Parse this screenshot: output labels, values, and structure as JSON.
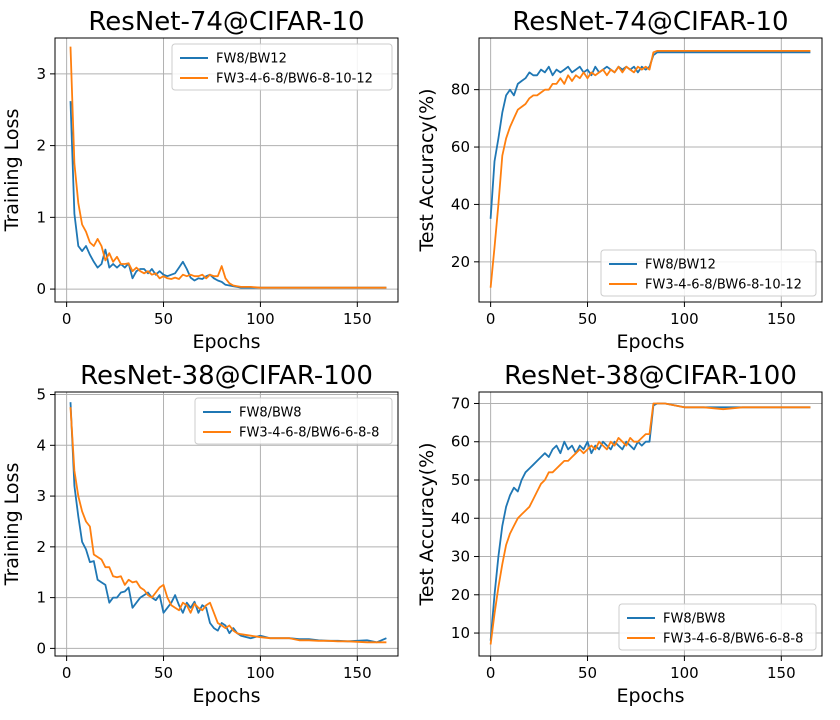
{
  "colors": {
    "series1": "#1f77b4",
    "series2": "#ff7f0e",
    "grid": "#b0b0b0"
  },
  "chart_data": [
    {
      "type": "line",
      "title": "ResNet-74@CIFAR-10",
      "xlabel": "Epochs",
      "ylabel": "Training Loss",
      "xlim": [
        -6,
        171
      ],
      "ylim": [
        -0.18,
        3.5
      ],
      "xticks": [
        0,
        50,
        100,
        150
      ],
      "yticks": [
        0,
        1,
        2,
        3
      ],
      "grid": true,
      "legend_position": "top-right",
      "series": [
        {
          "name": "FW8/BW12",
          "x": [
            2,
            4,
            6,
            8,
            10,
            12,
            14,
            16,
            18,
            20,
            22,
            24,
            26,
            28,
            30,
            32,
            34,
            36,
            38,
            40,
            42,
            44,
            46,
            48,
            50,
            52,
            54,
            56,
            58,
            60,
            62,
            64,
            66,
            68,
            70,
            72,
            74,
            76,
            78,
            80,
            82,
            84,
            86,
            88,
            90,
            95,
            100,
            110,
            120,
            130,
            140,
            150,
            160,
            165
          ],
          "y": [
            2.62,
            1.05,
            0.6,
            0.53,
            0.6,
            0.48,
            0.38,
            0.3,
            0.35,
            0.55,
            0.3,
            0.35,
            0.3,
            0.35,
            0.3,
            0.36,
            0.15,
            0.25,
            0.28,
            0.28,
            0.22,
            0.28,
            0.2,
            0.25,
            0.2,
            0.18,
            0.2,
            0.22,
            0.3,
            0.38,
            0.28,
            0.16,
            0.12,
            0.15,
            0.14,
            0.18,
            0.2,
            0.15,
            0.12,
            0.1,
            0.06,
            0.05,
            0.04,
            0.03,
            0.02,
            0.02,
            0.02,
            0.02,
            0.02,
            0.02,
            0.02,
            0.02,
            0.02,
            0.02
          ]
        },
        {
          "name": "FW3-4-6-8/BW6-8-10-12",
          "x": [
            2,
            4,
            6,
            8,
            10,
            12,
            14,
            16,
            18,
            20,
            22,
            24,
            26,
            28,
            30,
            32,
            34,
            36,
            38,
            40,
            42,
            44,
            46,
            48,
            50,
            52,
            54,
            56,
            58,
            60,
            62,
            64,
            66,
            68,
            70,
            72,
            74,
            76,
            78,
            80,
            82,
            84,
            86,
            88,
            90,
            95,
            100,
            110,
            120,
            130,
            140,
            150,
            160,
            165
          ],
          "y": [
            3.38,
            1.75,
            1.2,
            0.9,
            0.8,
            0.65,
            0.6,
            0.7,
            0.6,
            0.4,
            0.5,
            0.38,
            0.45,
            0.35,
            0.35,
            0.36,
            0.25,
            0.3,
            0.25,
            0.22,
            0.25,
            0.2,
            0.22,
            0.15,
            0.18,
            0.15,
            0.14,
            0.16,
            0.14,
            0.2,
            0.18,
            0.2,
            0.18,
            0.18,
            0.2,
            0.15,
            0.2,
            0.18,
            0.18,
            0.32,
            0.15,
            0.08,
            0.05,
            0.04,
            0.03,
            0.03,
            0.02,
            0.02,
            0.02,
            0.02,
            0.02,
            0.02,
            0.02,
            0.02
          ]
        }
      ]
    },
    {
      "type": "line",
      "title": "ResNet-74@CIFAR-10",
      "xlabel": "Epochs",
      "ylabel": "Test Accuracy(%)",
      "xlim": [
        -6,
        171
      ],
      "ylim": [
        6,
        98
      ],
      "xticks": [
        0,
        50,
        100,
        150
      ],
      "yticks": [
        20,
        40,
        60,
        80
      ],
      "grid": true,
      "legend_position": "bottom-right",
      "series": [
        {
          "name": "FW8/BW12",
          "x": [
            0,
            2,
            4,
            6,
            8,
            10,
            12,
            14,
            16,
            18,
            20,
            22,
            24,
            26,
            28,
            30,
            32,
            34,
            36,
            38,
            40,
            42,
            44,
            46,
            48,
            50,
            52,
            54,
            56,
            58,
            60,
            62,
            64,
            66,
            68,
            70,
            72,
            74,
            76,
            78,
            80,
            82,
            84,
            86,
            88,
            90,
            95,
            100,
            110,
            120,
            130,
            140,
            150,
            160,
            165
          ],
          "y": [
            35,
            55,
            63,
            72,
            78,
            80,
            78,
            82,
            83,
            84,
            86,
            85,
            85,
            87,
            86,
            88,
            85,
            87,
            86,
            87,
            88,
            86,
            87,
            88,
            86,
            87,
            85,
            88,
            86,
            87,
            88,
            87,
            86,
            88,
            87,
            88,
            87,
            88,
            86,
            88,
            87,
            88,
            92,
            93,
            93,
            93,
            93,
            93,
            93,
            93,
            93,
            93,
            93,
            93,
            93
          ]
        },
        {
          "name": "FW3-4-6-8/BW6-8-10-12",
          "x": [
            0,
            2,
            4,
            6,
            8,
            10,
            12,
            14,
            16,
            18,
            20,
            22,
            24,
            26,
            28,
            30,
            32,
            34,
            36,
            38,
            40,
            42,
            44,
            46,
            48,
            50,
            52,
            54,
            56,
            58,
            60,
            62,
            64,
            66,
            68,
            70,
            72,
            74,
            76,
            78,
            80,
            82,
            84,
            86,
            88,
            90,
            95,
            100,
            110,
            120,
            130,
            140,
            150,
            160,
            165
          ],
          "y": [
            11,
            25,
            40,
            57,
            63,
            67,
            70,
            73,
            74,
            75,
            77,
            78,
            78,
            79,
            80,
            80,
            82,
            82,
            84,
            82,
            85,
            83,
            85,
            84,
            86,
            84,
            86,
            85,
            86,
            87,
            85,
            87,
            86,
            88,
            86,
            88,
            87,
            86,
            88,
            87,
            88,
            87,
            93,
            93.5,
            93.5,
            93.5,
            93.5,
            93.5,
            93.5,
            93.5,
            93.5,
            93.5,
            93.5,
            93.5,
            93.5
          ]
        }
      ]
    },
    {
      "type": "line",
      "title": "ResNet-38@CIFAR-100",
      "xlabel": "Epochs",
      "ylabel": "Training Loss",
      "xlim": [
        -6,
        171
      ],
      "ylim": [
        -0.15,
        5.05
      ],
      "xticks": [
        0,
        50,
        100,
        150
      ],
      "yticks": [
        0,
        1,
        2,
        3,
        4,
        5
      ],
      "grid": true,
      "legend_position": "top-right",
      "series": [
        {
          "name": "FW8/BW8",
          "x": [
            2,
            4,
            6,
            8,
            10,
            12,
            14,
            16,
            18,
            20,
            22,
            24,
            26,
            28,
            30,
            32,
            34,
            36,
            38,
            40,
            42,
            44,
            46,
            48,
            50,
            52,
            54,
            56,
            58,
            60,
            62,
            64,
            66,
            68,
            70,
            72,
            74,
            76,
            78,
            80,
            82,
            84,
            86,
            88,
            90,
            95,
            100,
            105,
            110,
            115,
            120,
            125,
            130,
            135,
            140,
            145,
            150,
            155,
            160,
            165
          ],
          "y": [
            4.85,
            3.2,
            2.6,
            2.1,
            1.95,
            1.7,
            1.72,
            1.35,
            1.3,
            1.25,
            0.9,
            1.0,
            1.0,
            1.1,
            1.12,
            1.2,
            0.8,
            0.9,
            1.0,
            1.05,
            1.1,
            1.0,
            0.95,
            1.05,
            0.7,
            0.8,
            0.9,
            1.05,
            0.85,
            0.7,
            0.9,
            0.8,
            0.92,
            0.7,
            0.85,
            0.8,
            0.5,
            0.4,
            0.35,
            0.5,
            0.45,
            0.3,
            0.4,
            0.3,
            0.25,
            0.2,
            0.25,
            0.2,
            0.2,
            0.2,
            0.18,
            0.18,
            0.16,
            0.15,
            0.15,
            0.14,
            0.15,
            0.16,
            0.12,
            0.2
          ]
        },
        {
          "name": "FW3-4-6-8/BW6-6-8-8",
          "x": [
            2,
            4,
            6,
            8,
            10,
            12,
            14,
            16,
            18,
            20,
            22,
            24,
            26,
            28,
            30,
            32,
            34,
            36,
            38,
            40,
            42,
            44,
            46,
            48,
            50,
            52,
            54,
            56,
            58,
            60,
            62,
            64,
            66,
            68,
            70,
            72,
            74,
            76,
            78,
            80,
            82,
            84,
            86,
            88,
            90,
            95,
            100,
            105,
            110,
            115,
            120,
            125,
            130,
            135,
            140,
            145,
            150,
            155,
            160,
            165
          ],
          "y": [
            4.75,
            3.5,
            3.0,
            2.7,
            2.5,
            2.4,
            1.85,
            1.8,
            1.75,
            1.6,
            1.6,
            1.42,
            1.4,
            1.42,
            1.25,
            1.35,
            1.3,
            1.32,
            1.2,
            1.15,
            1.05,
            1.0,
            1.1,
            1.2,
            1.25,
            1.0,
            0.85,
            0.8,
            0.75,
            0.9,
            0.85,
            0.7,
            0.88,
            0.8,
            0.75,
            0.85,
            0.9,
            0.7,
            0.5,
            0.45,
            0.4,
            0.45,
            0.35,
            0.3,
            0.28,
            0.25,
            0.22,
            0.2,
            0.2,
            0.2,
            0.16,
            0.16,
            0.15,
            0.15,
            0.14,
            0.14,
            0.13,
            0.12,
            0.12,
            0.12
          ]
        }
      ]
    },
    {
      "type": "line",
      "title": "ResNet-38@CIFAR-100",
      "xlabel": "Epochs",
      "ylabel": "Test Accuracy(%)",
      "xlim": [
        -6,
        171
      ],
      "ylim": [
        4,
        73
      ],
      "xticks": [
        0,
        50,
        100,
        150
      ],
      "yticks": [
        10,
        20,
        30,
        40,
        50,
        60,
        70
      ],
      "grid": true,
      "legend_position": "bottom-right",
      "series": [
        {
          "name": "FW8/BW8",
          "x": [
            0,
            2,
            4,
            6,
            8,
            10,
            12,
            14,
            16,
            18,
            20,
            22,
            24,
            26,
            28,
            30,
            32,
            34,
            36,
            38,
            40,
            42,
            44,
            46,
            48,
            50,
            52,
            54,
            56,
            58,
            60,
            62,
            64,
            66,
            68,
            70,
            72,
            74,
            76,
            78,
            80,
            82,
            84,
            86,
            88,
            90,
            95,
            100,
            110,
            120,
            130,
            140,
            150,
            160,
            165
          ],
          "y": [
            8,
            20,
            30,
            38,
            43,
            46,
            48,
            47,
            50,
            52,
            53,
            54,
            55,
            56,
            57,
            56,
            58,
            59,
            57,
            60,
            58,
            59,
            57,
            59,
            58,
            60,
            57,
            59,
            58,
            60,
            59,
            58,
            60,
            59,
            58,
            60,
            59,
            58,
            60,
            59,
            60,
            60,
            69.5,
            70,
            70,
            70,
            69.5,
            69,
            69,
            69,
            69,
            69,
            69,
            69,
            69
          ]
        },
        {
          "name": "FW3-4-6-8/BW6-6-8-8",
          "x": [
            0,
            2,
            4,
            6,
            8,
            10,
            12,
            14,
            16,
            18,
            20,
            22,
            24,
            26,
            28,
            30,
            32,
            34,
            36,
            38,
            40,
            42,
            44,
            46,
            48,
            50,
            52,
            54,
            56,
            58,
            60,
            62,
            64,
            66,
            68,
            70,
            72,
            74,
            76,
            78,
            80,
            82,
            84,
            86,
            88,
            90,
            95,
            100,
            110,
            120,
            130,
            140,
            150,
            160,
            165
          ],
          "y": [
            7,
            15,
            22,
            28,
            33,
            36,
            38,
            40,
            41,
            42,
            43,
            45,
            47,
            49,
            50,
            52,
            52,
            53,
            54,
            55,
            55,
            56,
            57,
            58,
            57,
            58,
            59,
            58,
            60,
            59,
            58,
            60,
            59,
            61,
            60,
            59,
            61,
            60,
            60,
            61,
            62,
            62,
            70,
            70,
            70,
            70,
            69.5,
            69,
            69,
            68.5,
            69,
            69,
            69,
            69,
            69
          ]
        }
      ]
    }
  ]
}
